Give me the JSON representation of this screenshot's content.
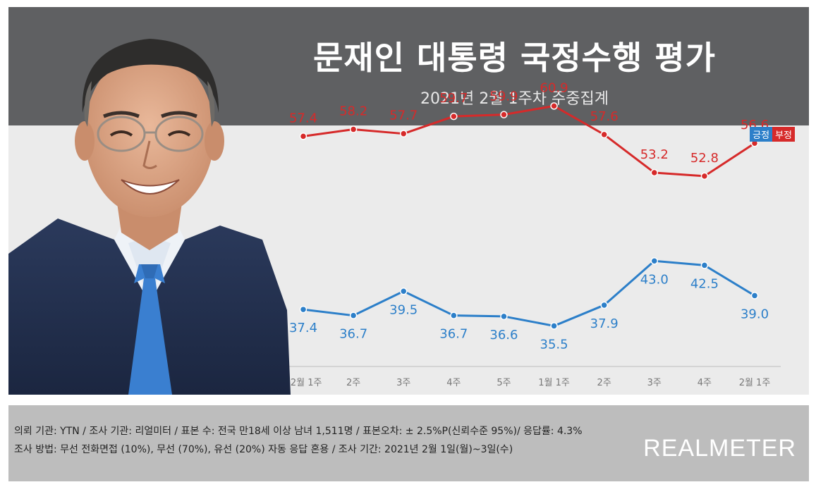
{
  "header": {
    "title": "문재인 대통령 국정수행 평가",
    "subtitle": "2021년 2월 1주차 주중집계"
  },
  "legend": {
    "positive": "긍정",
    "negative": "부정",
    "positive_color": "#2c7fc9",
    "negative_color": "#d62a2a"
  },
  "chart_data": {
    "type": "line",
    "categories": [
      "12월 1주",
      "2주",
      "3주",
      "4주",
      "5주",
      "1월 1주",
      "2주",
      "3주",
      "4주",
      "2월 1주"
    ],
    "series": [
      {
        "name": "부정",
        "color": "#d62a2a",
        "values": [
          57.4,
          58.2,
          57.7,
          59.7,
          59.9,
          60.9,
          57.6,
          53.2,
          52.8,
          56.6
        ]
      },
      {
        "name": "긍정",
        "color": "#2c7fc9",
        "values": [
          37.4,
          36.7,
          39.5,
          36.7,
          36.6,
          35.5,
          37.9,
          43.0,
          42.5,
          39.0
        ]
      }
    ],
    "ylim": [
      30,
      65
    ],
    "grid": false
  },
  "footer": {
    "line1": "의뢰 기관: YTN / 조사 기관: 리얼미터 / 표본 수: 전국 만18세 이상 남녀 1,511명 / 표본오차: ± 2.5%P(신뢰수준 95%)/ 응답률: 4.3%",
    "line2": "조사 방법: 무선 전화면접 (10%), 무선 (70%), 유선 (20%)  자동 응답 혼용 / 조사 기간: 2021년 2월 1일(월)~3일(수)",
    "brand": "REALMETER"
  }
}
